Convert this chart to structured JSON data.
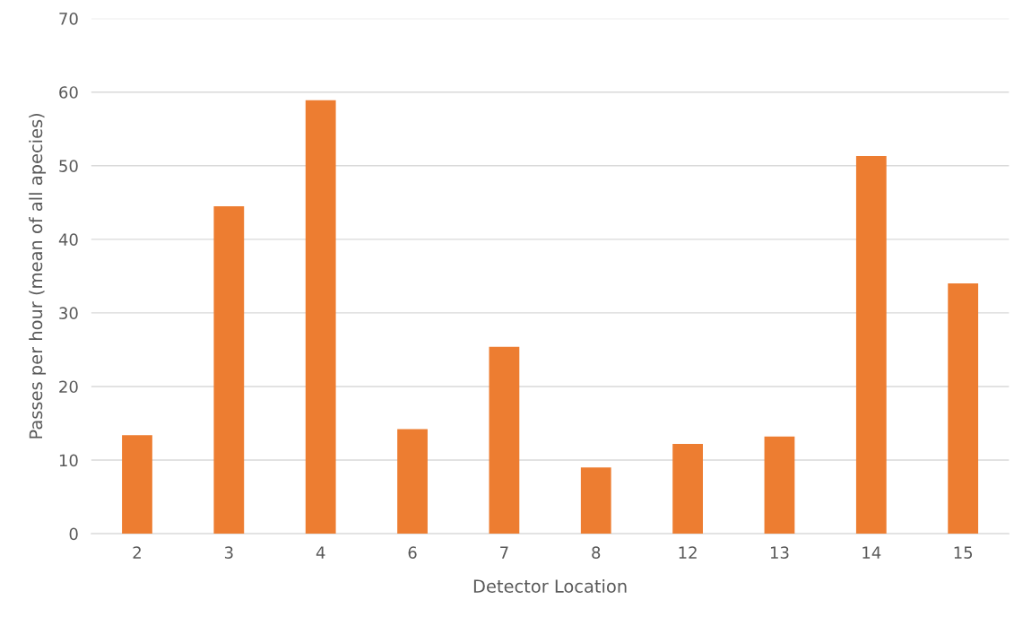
{
  "chart_data": {
    "type": "bar",
    "xlabel": "Detector Location",
    "ylabel": "Passes per hour (mean of all apecies)",
    "categories": [
      "2",
      "3",
      "4",
      "6",
      "7",
      "8",
      "12",
      "13",
      "14",
      "15"
    ],
    "values": [
      13.4,
      44.5,
      58.9,
      14.2,
      25.4,
      9.0,
      12.2,
      13.2,
      51.3,
      34.0
    ],
    "color": "#ed7d31",
    "ylim": [
      0,
      70
    ],
    "yticks": [
      0,
      10,
      20,
      30,
      40,
      50,
      60,
      70
    ],
    "grid": "y",
    "legend": false
  }
}
